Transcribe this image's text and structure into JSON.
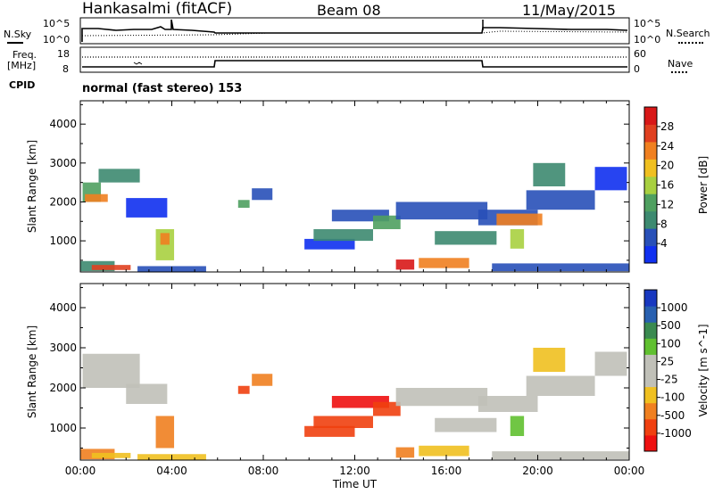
{
  "header": {
    "station": "Hankasalmi (fitACF)",
    "beam": "Beam 08",
    "date": "11/May/2015"
  },
  "noise_panel": {
    "left_label": "N.Sky",
    "right_label": "N.Search",
    "left_ticks": [
      "10^5",
      "10^0"
    ],
    "right_ticks": [
      "10^5",
      "10^0"
    ]
  },
  "freq_panel": {
    "left_label_line1": "Freq.",
    "left_label_line2": "[MHz]",
    "right_label": "Nave",
    "left_ticks": [
      "18",
      "8"
    ],
    "right_ticks": [
      "60",
      "0"
    ]
  },
  "cpid": {
    "label": "CPID",
    "mode": "normal (fast stereo) 153"
  },
  "colors": {
    "power": [
      "#1030f0",
      "#2850b8",
      "#3d8a70",
      "#4fa060",
      "#a8d040",
      "#f0c020",
      "#f08020",
      "#e04020",
      "#d81818"
    ],
    "velocity": [
      "#ee1010",
      "#f04010",
      "#f08020",
      "#f0c020",
      "#c0c0b8",
      "#c0c0b8",
      "#60c030",
      "#3a8a50",
      "#2860b0",
      "#1838c0"
    ]
  },
  "chart_data": [
    {
      "type": "heatmap",
      "quantity": "Power",
      "ylabel": "Slant Range [km]",
      "yticks": [
        1000,
        2000,
        3000,
        4000
      ],
      "ylim": [
        200,
        4600
      ],
      "xlim": [
        0,
        24
      ],
      "colorbar_label": "Power [dB]",
      "colorbar_ticks": [
        "4",
        "8",
        "12",
        "16",
        "20",
        "24",
        "28"
      ],
      "regions": [
        {
          "t0": 0.1,
          "t1": 0.9,
          "r0": 2000,
          "r1": 2500,
          "level": 4
        },
        {
          "t0": 0.8,
          "t1": 2.6,
          "r0": 2500,
          "r1": 2850,
          "level": 3
        },
        {
          "t0": 0.2,
          "t1": 1.2,
          "r0": 2000,
          "r1": 2200,
          "level": 7
        },
        {
          "t0": 0.0,
          "t1": 1.5,
          "r0": 220,
          "r1": 480,
          "level": 3
        },
        {
          "t0": 0.5,
          "t1": 2.2,
          "r0": 250,
          "r1": 380,
          "level": 8
        },
        {
          "t0": 2.0,
          "t1": 3.8,
          "r0": 1600,
          "r1": 2100,
          "level": 1
        },
        {
          "t0": 3.3,
          "t1": 4.1,
          "r0": 500,
          "r1": 1300,
          "level": 5
        },
        {
          "t0": 3.5,
          "t1": 3.9,
          "r0": 900,
          "r1": 1200,
          "level": 7
        },
        {
          "t0": 2.5,
          "t1": 5.5,
          "r0": 200,
          "r1": 350,
          "level": 2
        },
        {
          "t0": 6.9,
          "t1": 7.4,
          "r0": 1850,
          "r1": 2050,
          "level": 4
        },
        {
          "t0": 7.5,
          "t1": 8.4,
          "r0": 2050,
          "r1": 2350,
          "level": 2
        },
        {
          "t0": 9.8,
          "t1": 12.0,
          "r0": 780,
          "r1": 1050,
          "level": 1
        },
        {
          "t0": 10.2,
          "t1": 12.8,
          "r0": 1000,
          "r1": 1300,
          "level": 3
        },
        {
          "t0": 11.0,
          "t1": 13.5,
          "r0": 1500,
          "r1": 1800,
          "level": 2
        },
        {
          "t0": 12.8,
          "t1": 14.0,
          "r0": 1300,
          "r1": 1650,
          "level": 4
        },
        {
          "t0": 13.8,
          "t1": 14.6,
          "r0": 260,
          "r1": 520,
          "level": 9
        },
        {
          "t0": 14.8,
          "t1": 17.0,
          "r0": 300,
          "r1": 560,
          "level": 7
        },
        {
          "t0": 13.8,
          "t1": 17.8,
          "r0": 1550,
          "r1": 2000,
          "level": 2
        },
        {
          "t0": 15.5,
          "t1": 18.2,
          "r0": 900,
          "r1": 1250,
          "level": 3
        },
        {
          "t0": 17.4,
          "t1": 20.0,
          "r0": 1400,
          "r1": 1800,
          "level": 2
        },
        {
          "t0": 18.2,
          "t1": 20.2,
          "r0": 1400,
          "r1": 1700,
          "level": 7
        },
        {
          "t0": 18.8,
          "t1": 19.4,
          "r0": 800,
          "r1": 1300,
          "level": 5
        },
        {
          "t0": 19.5,
          "t1": 22.5,
          "r0": 1800,
          "r1": 2300,
          "level": 2
        },
        {
          "t0": 19.8,
          "t1": 21.2,
          "r0": 2400,
          "r1": 3000,
          "level": 3
        },
        {
          "t0": 22.5,
          "t1": 23.9,
          "r0": 2300,
          "r1": 2900,
          "level": 1
        },
        {
          "t0": 18.0,
          "t1": 24.0,
          "r0": 220,
          "r1": 420,
          "level": 2
        }
      ]
    },
    {
      "type": "heatmap",
      "quantity": "Velocity",
      "ylabel": "Slant Range [km]",
      "yticks": [
        1000,
        2000,
        3000,
        4000
      ],
      "ylim": [
        200,
        4600
      ],
      "xlim": [
        0,
        24
      ],
      "xticks": [
        "00:00",
        "04:00",
        "08:00",
        "12:00",
        "16:00",
        "20:00",
        "00:00"
      ],
      "xlabel": "Time UT",
      "colorbar_label": "Velocity [m s^-1]",
      "colorbar_ticks": [
        "-1000",
        "-500",
        "-100",
        "-25",
        "25",
        "100",
        "500",
        "1000"
      ],
      "regions": [
        {
          "t0": 0.1,
          "t1": 2.6,
          "r0": 2000,
          "r1": 2850,
          "level": 5
        },
        {
          "t0": 2.0,
          "t1": 3.8,
          "r0": 1600,
          "r1": 2100,
          "level": 5
        },
        {
          "t0": 0.0,
          "t1": 1.5,
          "r0": 220,
          "r1": 480,
          "level": 3
        },
        {
          "t0": 0.5,
          "t1": 2.2,
          "r0": 250,
          "r1": 380,
          "level": 4
        },
        {
          "t0": 3.3,
          "t1": 4.1,
          "r0": 500,
          "r1": 1300,
          "level": 3
        },
        {
          "t0": 2.5,
          "t1": 5.5,
          "r0": 200,
          "r1": 350,
          "level": 4
        },
        {
          "t0": 6.9,
          "t1": 7.4,
          "r0": 1850,
          "r1": 2050,
          "level": 2
        },
        {
          "t0": 7.5,
          "t1": 8.4,
          "r0": 2050,
          "r1": 2350,
          "level": 3
        },
        {
          "t0": 9.8,
          "t1": 12.0,
          "r0": 780,
          "r1": 1050,
          "level": 2
        },
        {
          "t0": 10.2,
          "t1": 12.8,
          "r0": 1000,
          "r1": 1300,
          "level": 2
        },
        {
          "t0": 11.0,
          "t1": 13.5,
          "r0": 1500,
          "r1": 1800,
          "level": 1
        },
        {
          "t0": 12.8,
          "t1": 14.0,
          "r0": 1300,
          "r1": 1650,
          "level": 2
        },
        {
          "t0": 13.8,
          "t1": 14.6,
          "r0": 260,
          "r1": 520,
          "level": 3
        },
        {
          "t0": 14.8,
          "t1": 17.0,
          "r0": 300,
          "r1": 560,
          "level": 4
        },
        {
          "t0": 13.8,
          "t1": 17.8,
          "r0": 1550,
          "r1": 2000,
          "level": 5
        },
        {
          "t0": 15.5,
          "t1": 18.2,
          "r0": 900,
          "r1": 1250,
          "level": 5
        },
        {
          "t0": 17.4,
          "t1": 20.0,
          "r0": 1400,
          "r1": 1800,
          "level": 5
        },
        {
          "t0": 18.8,
          "t1": 19.4,
          "r0": 800,
          "r1": 1300,
          "level": 7
        },
        {
          "t0": 19.5,
          "t1": 22.5,
          "r0": 1800,
          "r1": 2300,
          "level": 5
        },
        {
          "t0": 19.8,
          "t1": 21.2,
          "r0": 2400,
          "r1": 3000,
          "level": 4
        },
        {
          "t0": 22.5,
          "t1": 23.9,
          "r0": 2300,
          "r1": 2900,
          "level": 5
        },
        {
          "t0": 18.0,
          "t1": 24.0,
          "r0": 220,
          "r1": 420,
          "level": 6
        }
      ]
    }
  ]
}
